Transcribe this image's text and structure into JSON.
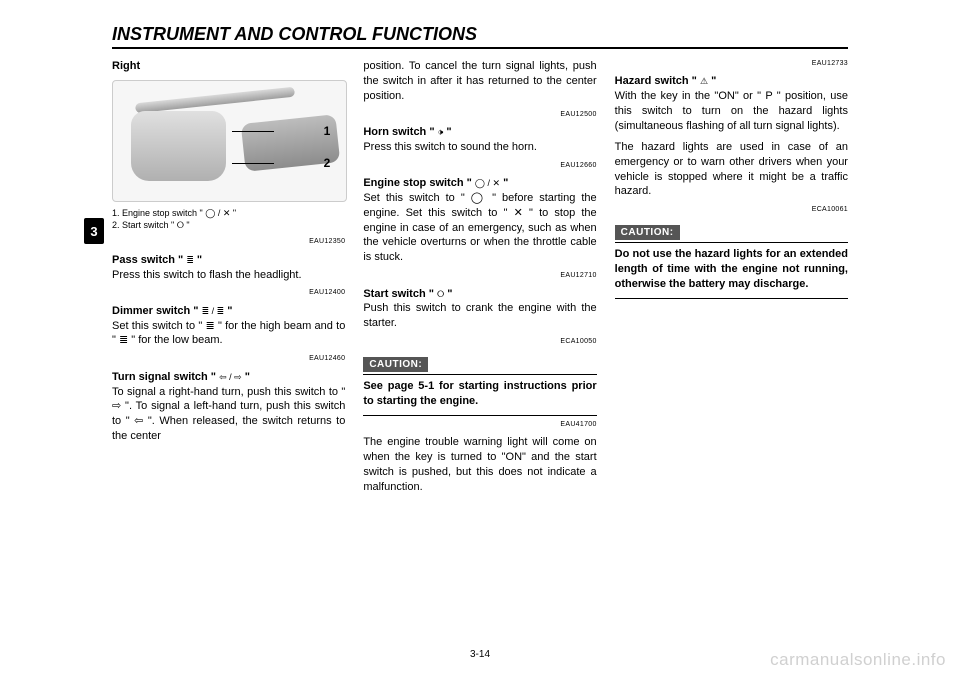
{
  "header": {
    "title": "INSTRUMENT AND CONTROL FUNCTIONS"
  },
  "side_tab": "3",
  "page_number": "3-14",
  "watermark": "carmanualsonline.info",
  "figure": {
    "labels": {
      "n1": "1",
      "n2": "2"
    },
    "caption_lines": [
      "1. Engine stop switch \" ◯ / ✕ \"",
      "2. Start switch \" ⭘ \""
    ]
  },
  "col1": {
    "right_heading": "Right",
    "code_pass": "EAU12350",
    "pass_heading": "Pass switch \" ",
    "pass_sym": "≣",
    "pass_heading_end": " \"",
    "pass_body": "Press this switch to flash the headlight.",
    "code_dimmer": "EAU12400",
    "dimmer_heading": "Dimmer switch \" ",
    "dimmer_sym": "≣ / ≣",
    "dimmer_heading_end": " \"",
    "dimmer_body": "Set this switch to \" ≣ \" for the high beam and to \" ≣ \" for the low beam.",
    "code_turn": "EAU12460",
    "turn_heading": "Turn signal switch \" ",
    "turn_sym": "⇦ / ⇨",
    "turn_heading_end": " \"",
    "turn_body": "To signal a right-hand turn, push this switch to \" ⇨ \". To signal a left-hand turn, push this switch to \" ⇦ \". When released, the switch returns to the center"
  },
  "col2": {
    "turn_cont": "position. To cancel the turn signal lights, push the switch in after it has returned to the center position.",
    "code_horn": "EAU12500",
    "horn_heading": "Horn switch \" ",
    "horn_sym": "🕩",
    "horn_heading_end": " \"",
    "horn_body": "Press this switch to sound the horn.",
    "code_stop": "EAU12660",
    "stop_heading": "Engine stop switch \" ",
    "stop_sym": "◯ / ✕",
    "stop_heading_end": " \"",
    "stop_body": "Set this switch to \" ◯ \" before starting the engine. Set this switch to \" ✕ \" to stop the engine in case of an emergency, such as when the vehicle overturns or when the throttle cable is stuck.",
    "code_start": "EAU12710",
    "start_heading": "Start switch \" ",
    "start_sym": "⭘",
    "start_heading_end": " \"",
    "start_body": "Push this switch to crank the engine with the starter.",
    "caution_code": "ECA10050",
    "caution_label": "CAUTION:",
    "caution_body": "See page 5-1 for starting instructions prior to starting the engine.",
    "code_trouble": "EAU41700",
    "trouble_body": "The engine trouble warning light will come on when the key is turned to \"ON\" and the start switch is pushed, but this does not indicate a malfunction."
  },
  "col3": {
    "code_hazard": "EAU12733",
    "hazard_heading": "Hazard switch \" ",
    "hazard_sym": "⚠",
    "hazard_heading_end": " \"",
    "hazard_body1": "With the key in the \"ON\" or \" P \" position, use this switch to turn on the hazard lights (simultaneous flashing of all turn signal lights).",
    "hazard_body2": "The hazard lights are used in case of an emergency or to warn other drivers when your vehicle is stopped where it might be a traffic hazard.",
    "caution_code": "ECA10061",
    "caution_label": "CAUTION:",
    "caution_body": "Do not use the hazard lights for an extended length of time with the engine not running, otherwise the battery may discharge."
  }
}
